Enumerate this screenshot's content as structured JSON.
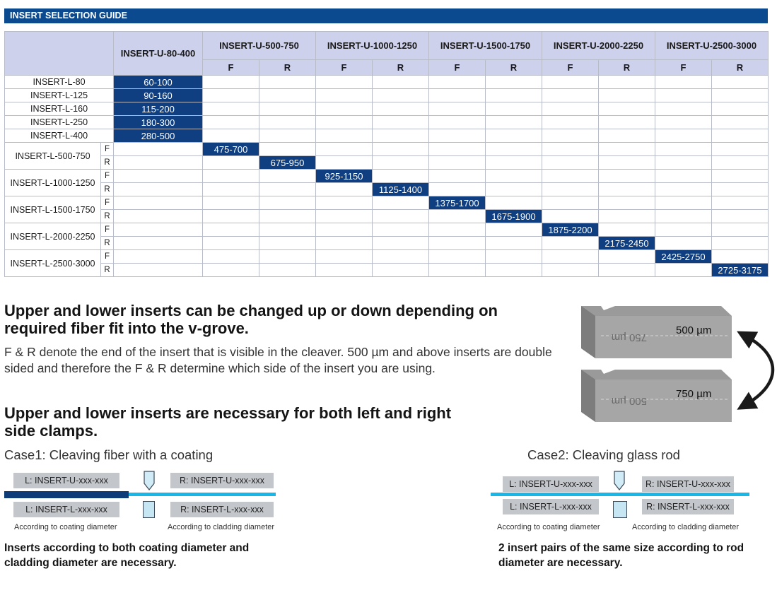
{
  "guide": {
    "title": "INSERT SELECTION GUIDE",
    "upper_headers": [
      "INSERT-U-80-400",
      "INSERT-U-500-750",
      "INSERT-U-1000-1250",
      "INSERT-U-1500-1750",
      "INSERT-U-2000-2250",
      "INSERT-U-2500-3000"
    ],
    "side_labels": [
      "F",
      "R"
    ],
    "simple_rows": [
      {
        "label": "INSERT-L-80",
        "value": "60-100"
      },
      {
        "label": "INSERT-L-125",
        "value": "90-160"
      },
      {
        "label": "INSERT-L-160",
        "value": "115-200"
      },
      {
        "label": "INSERT-L-250",
        "value": "180-300"
      },
      {
        "label": "INSERT-L-400",
        "value": "280-500"
      }
    ],
    "dual_rows": [
      {
        "label": "INSERT-L-500-750",
        "f": "475-700",
        "r": "675-950"
      },
      {
        "label": "INSERT-L-1000-1250",
        "f": "925-1150",
        "r": "1125-1400"
      },
      {
        "label": "INSERT-L-1500-1750",
        "f": "1375-1700",
        "r": "1675-1900"
      },
      {
        "label": "INSERT-L-2000-2250",
        "f": "1875-2200",
        "r": "2175-2450"
      },
      {
        "label": "INSERT-L-2500-3000",
        "f": "2425-2750",
        "r": "2725-3175"
      }
    ]
  },
  "section1": {
    "heading": "Upper and lower inserts can be changed up or down depending on required fiber fit into the v-grove.",
    "body": "F & R denote the end of the insert that is visible in the cleaver. 500 µm and above inserts are double sided and therefore the F & R determine which side of the insert you are using."
  },
  "illustration": {
    "top_front": "500 µm",
    "top_back": "750 µm",
    "bottom_front": "750 µm",
    "bottom_back": "500 µm"
  },
  "section2": {
    "heading": "Upper and lower inserts are necessary for both left and right side clamps."
  },
  "case1": {
    "title": "Case1: Cleaving fiber with a coating",
    "upper_left": "L: INSERT-U-xxx-xxx",
    "upper_right": "R: INSERT-U-xxx-xxx",
    "lower_left": "L: INSERT-L-xxx-xxx",
    "lower_right": "R: INSERT-L-xxx-xxx",
    "note_left": "According to coating diameter",
    "note_right": "According to cladding diameter",
    "conclusion": "Inserts according to both coating diameter and cladding diameter are necessary."
  },
  "case2": {
    "title": "Case2: Cleaving glass rod",
    "upper_left": "L: INSERT-U-xxx-xxx",
    "upper_right": "R: INSERT-U-xxx-xxx",
    "lower_left": "L: INSERT-L-xxx-xxx",
    "lower_right": "R: INSERT-L-xxx-xxx",
    "note_left": "According to coating diameter",
    "note_right": "According to cladding diameter",
    "conclusion": "2 insert pairs of the same size according to rod diameter are necessary."
  },
  "colors": {
    "brand_blue": "#0b4a8e",
    "cell_blue": "#0f3f80",
    "header_lavender": "#ced1ec",
    "fiber_cyan": "#19b7e8",
    "coating_navy": "#0d3c78"
  }
}
